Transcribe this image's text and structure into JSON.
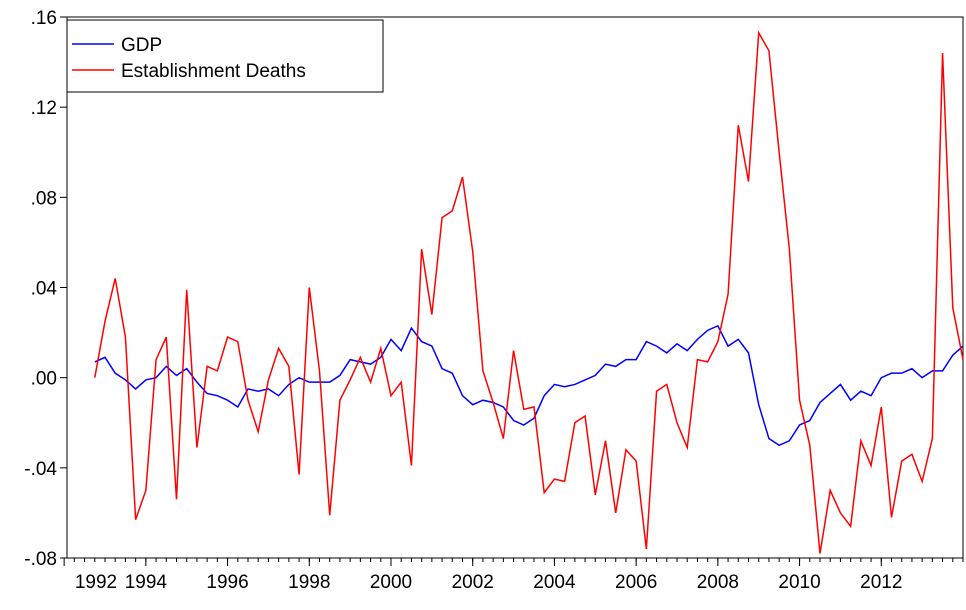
{
  "chart_data": {
    "type": "line",
    "x": [
      1992.75,
      1993,
      1993.25,
      1993.5,
      1993.75,
      1994,
      1994.25,
      1994.5,
      1994.75,
      1995,
      1995.25,
      1995.5,
      1995.75,
      1996,
      1996.25,
      1996.5,
      1996.75,
      1997,
      1997.25,
      1997.5,
      1997.75,
      1998,
      1998.25,
      1998.5,
      1998.75,
      1999,
      1999.25,
      1999.5,
      1999.75,
      2000,
      2000.25,
      2000.5,
      2000.75,
      2001,
      2001.25,
      2001.5,
      2001.75,
      2002,
      2002.25,
      2002.5,
      2002.75,
      2003,
      2003.25,
      2003.5,
      2003.75,
      2004,
      2004.25,
      2004.5,
      2004.75,
      2005,
      2005.25,
      2005.5,
      2005.75,
      2006,
      2006.25,
      2006.5,
      2006.75,
      2007,
      2007.25,
      2007.5,
      2007.75,
      2008,
      2008.25,
      2008.5,
      2008.75,
      2009,
      2009.25,
      2009.5,
      2009.75,
      2010,
      2010.25,
      2010.5,
      2010.75,
      2011,
      2011.25,
      2011.5,
      2011.75,
      2012,
      2012.25,
      2012.5,
      2012.75,
      2013,
      2013.25,
      2013.5,
      2013.75,
      2014
    ],
    "series": [
      {
        "name": "GDP",
        "color": "#0000ff",
        "values": [
          0.007,
          0.009,
          0.002,
          -0.001,
          -0.005,
          -0.001,
          0.0,
          0.005,
          0.001,
          0.004,
          -0.002,
          -0.007,
          -0.008,
          -0.01,
          -0.013,
          -0.005,
          -0.006,
          -0.005,
          -0.008,
          -0.003,
          0.0,
          -0.002,
          -0.002,
          -0.002,
          0.001,
          0.008,
          0.007,
          0.006,
          0.009,
          0.017,
          0.012,
          0.022,
          0.016,
          0.014,
          0.004,
          0.002,
          -0.008,
          -0.012,
          -0.01,
          -0.011,
          -0.013,
          -0.019,
          -0.021,
          -0.018,
          -0.008,
          -0.003,
          -0.004,
          -0.003,
          -0.001,
          0.001,
          0.006,
          0.005,
          0.008,
          0.008,
          0.016,
          0.014,
          0.011,
          0.015,
          0.012,
          0.017,
          0.021,
          0.023,
          0.014,
          0.017,
          0.011,
          -0.012,
          -0.027,
          -0.03,
          -0.028,
          -0.021,
          -0.019,
          -0.011,
          -0.007,
          -0.003,
          -0.01,
          -0.006,
          -0.008,
          0.0,
          0.002,
          0.002,
          0.004,
          0.0,
          0.003,
          0.003,
          0.01,
          0.014
        ]
      },
      {
        "name": "Establishment Deaths",
        "color": "#ff0000",
        "values": [
          0.0,
          0.025,
          0.044,
          0.018,
          -0.063,
          -0.05,
          0.008,
          0.018,
          -0.054,
          0.039,
          -0.031,
          0.005,
          0.003,
          0.018,
          0.016,
          -0.01,
          -0.024,
          -0.001,
          0.013,
          0.005,
          -0.043,
          0.04,
          0.003,
          -0.061,
          -0.01,
          -0.001,
          0.009,
          -0.002,
          0.013,
          -0.008,
          -0.002,
          -0.039,
          0.057,
          0.028,
          0.071,
          0.074,
          0.089,
          0.056,
          0.003,
          -0.011,
          -0.027,
          0.012,
          -0.014,
          -0.013,
          -0.051,
          -0.045,
          -0.046,
          -0.02,
          -0.017,
          -0.052,
          -0.028,
          -0.06,
          -0.032,
          -0.037,
          -0.076,
          -0.006,
          -0.003,
          -0.02,
          -0.031,
          0.008,
          0.007,
          0.016,
          0.037,
          0.112,
          0.087,
          0.153,
          0.145,
          0.1,
          0.057,
          -0.01,
          -0.03,
          -0.078,
          -0.05,
          -0.06,
          -0.066,
          -0.028,
          -0.039,
          -0.013,
          -0.062,
          -0.037,
          -0.034,
          -0.046,
          -0.027,
          0.144,
          0.031,
          0.008
        ]
      }
    ],
    "xlim": [
      1992.07,
      2014.0
    ],
    "xticks": [
      1992,
      1994,
      1996,
      1998,
      2000,
      2002,
      2004,
      2006,
      2008,
      2010,
      2012
    ],
    "ylim": [
      -0.08,
      0.16
    ],
    "yticks": [
      {
        "value": -0.08,
        "label": "-.08"
      },
      {
        "value": -0.04,
        "label": "-.04"
      },
      {
        "value": 0,
        "label": ".00"
      },
      {
        "value": 0.04,
        "label": ".04"
      },
      {
        "value": 0.08,
        "label": ".08"
      },
      {
        "value": 0.12,
        "label": ".12"
      },
      {
        "value": 0.16,
        "label": ".16"
      }
    ],
    "legend": "top-left"
  }
}
